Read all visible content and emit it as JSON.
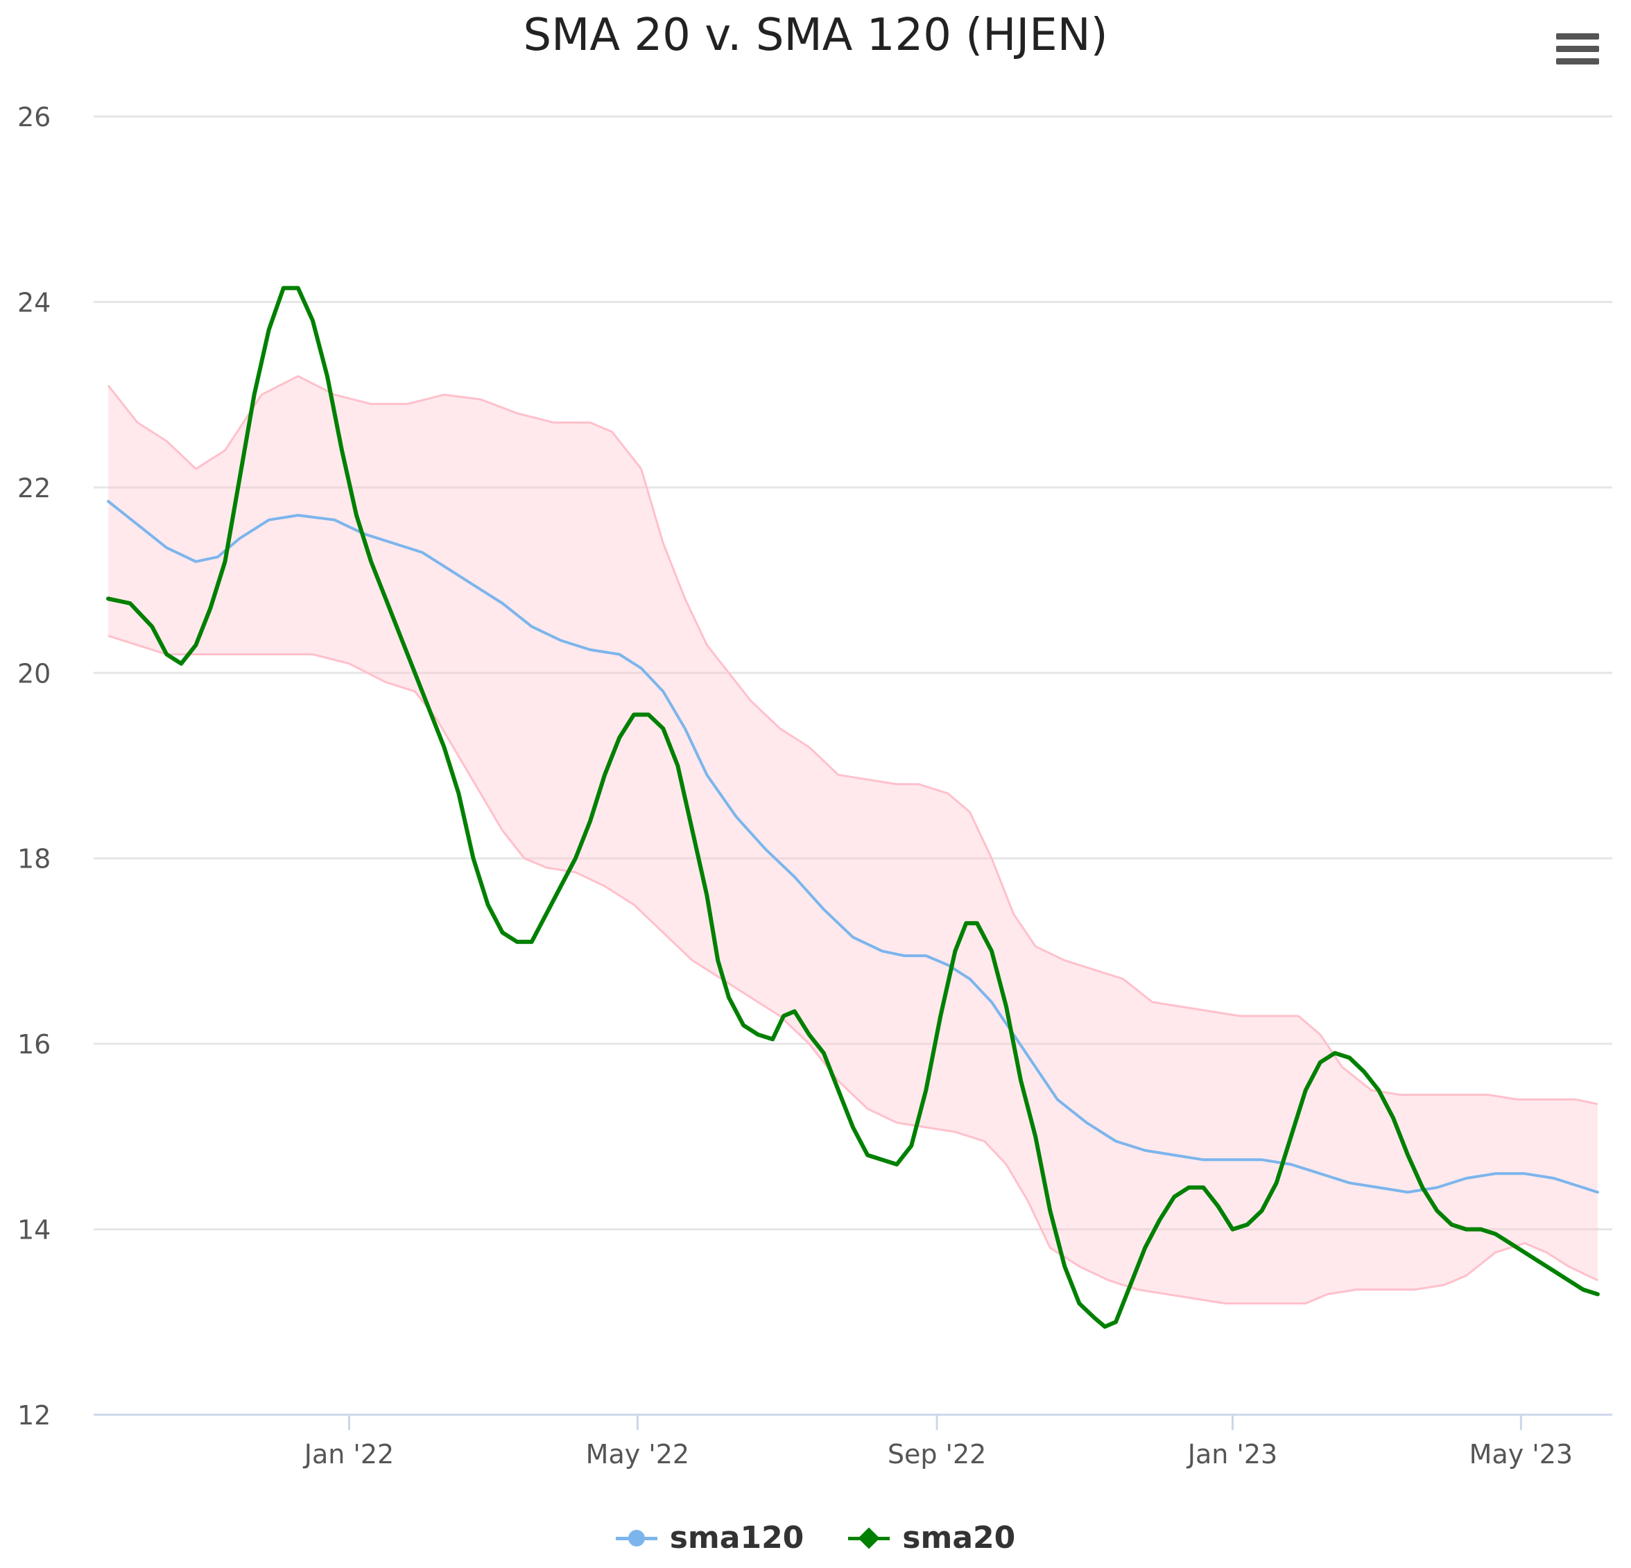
{
  "chart_data": {
    "type": "line",
    "title": "SMA 20 v. SMA 120 (HJEN)",
    "xlabel": "",
    "ylabel": "",
    "ylim": [
      12,
      26
    ],
    "yticks": [
      "12",
      "14",
      "16",
      "18",
      "20",
      "22",
      "24",
      "26"
    ],
    "xticks": [
      {
        "label": "Jan '22",
        "t": 3.5
      },
      {
        "label": "May '22",
        "t": 7.45
      },
      {
        "label": "Sep '22",
        "t": 11.55
      },
      {
        "label": "Jan '23",
        "t": 15.6
      },
      {
        "label": "May '23",
        "t": 19.55
      }
    ],
    "x_unit": "months since 2021-09-15",
    "xlim": [
      0,
      20.8
    ],
    "grid": true,
    "legend_position": "bottom-center",
    "band": {
      "name": "sma120 band",
      "color": "#ffc0cb",
      "upper": [
        [
          0.2,
          23.1
        ],
        [
          0.6,
          22.7
        ],
        [
          1.0,
          22.5
        ],
        [
          1.4,
          22.2
        ],
        [
          1.8,
          22.4
        ],
        [
          2.3,
          23.0
        ],
        [
          2.8,
          23.2
        ],
        [
          3.3,
          23.0
        ],
        [
          3.8,
          22.9
        ],
        [
          4.3,
          22.9
        ],
        [
          4.8,
          23.0
        ],
        [
          5.3,
          22.95
        ],
        [
          5.8,
          22.8
        ],
        [
          6.3,
          22.7
        ],
        [
          6.8,
          22.7
        ],
        [
          7.1,
          22.6
        ],
        [
          7.5,
          22.2
        ],
        [
          7.8,
          21.4
        ],
        [
          8.1,
          20.8
        ],
        [
          8.4,
          20.3
        ],
        [
          8.7,
          20.0
        ],
        [
          9.0,
          19.7
        ],
        [
          9.4,
          19.4
        ],
        [
          9.8,
          19.2
        ],
        [
          10.2,
          18.9
        ],
        [
          10.6,
          18.85
        ],
        [
          11.0,
          18.8
        ],
        [
          11.3,
          18.8
        ],
        [
          11.7,
          18.7
        ],
        [
          12.0,
          18.5
        ],
        [
          12.3,
          18.0
        ],
        [
          12.6,
          17.4
        ],
        [
          12.9,
          17.05
        ],
        [
          13.3,
          16.9
        ],
        [
          13.7,
          16.8
        ],
        [
          14.1,
          16.7
        ],
        [
          14.5,
          16.45
        ],
        [
          14.9,
          16.4
        ],
        [
          15.3,
          16.35
        ],
        [
          15.7,
          16.3
        ],
        [
          16.1,
          16.3
        ],
        [
          16.5,
          16.3
        ],
        [
          16.8,
          16.1
        ],
        [
          17.1,
          15.75
        ],
        [
          17.5,
          15.5
        ],
        [
          17.9,
          15.45
        ],
        [
          18.3,
          15.45
        ],
        [
          18.7,
          15.45
        ],
        [
          19.1,
          15.45
        ],
        [
          19.5,
          15.4
        ],
        [
          19.9,
          15.4
        ],
        [
          20.3,
          15.4
        ],
        [
          20.6,
          15.35
        ]
      ],
      "lower": [
        [
          0.2,
          20.4
        ],
        [
          0.6,
          20.3
        ],
        [
          1.0,
          20.2
        ],
        [
          1.5,
          20.2
        ],
        [
          2.0,
          20.2
        ],
        [
          2.5,
          20.2
        ],
        [
          3.0,
          20.2
        ],
        [
          3.5,
          20.1
        ],
        [
          4.0,
          19.9
        ],
        [
          4.4,
          19.8
        ],
        [
          4.7,
          19.5
        ],
        [
          5.0,
          19.1
        ],
        [
          5.3,
          18.7
        ],
        [
          5.6,
          18.3
        ],
        [
          5.9,
          18.0
        ],
        [
          6.2,
          17.9
        ],
        [
          6.6,
          17.85
        ],
        [
          7.0,
          17.7
        ],
        [
          7.4,
          17.5
        ],
        [
          7.8,
          17.2
        ],
        [
          8.2,
          16.9
        ],
        [
          8.6,
          16.7
        ],
        [
          9.0,
          16.5
        ],
        [
          9.4,
          16.3
        ],
        [
          9.8,
          16.0
        ],
        [
          10.2,
          15.6
        ],
        [
          10.6,
          15.3
        ],
        [
          11.0,
          15.15
        ],
        [
          11.4,
          15.1
        ],
        [
          11.8,
          15.05
        ],
        [
          12.2,
          14.95
        ],
        [
          12.5,
          14.7
        ],
        [
          12.8,
          14.3
        ],
        [
          13.1,
          13.8
        ],
        [
          13.5,
          13.6
        ],
        [
          13.9,
          13.45
        ],
        [
          14.3,
          13.35
        ],
        [
          14.7,
          13.3
        ],
        [
          15.1,
          13.25
        ],
        [
          15.5,
          13.2
        ],
        [
          15.9,
          13.2
        ],
        [
          16.3,
          13.2
        ],
        [
          16.6,
          13.2
        ],
        [
          16.9,
          13.3
        ],
        [
          17.3,
          13.35
        ],
        [
          17.7,
          13.35
        ],
        [
          18.1,
          13.35
        ],
        [
          18.5,
          13.4
        ],
        [
          18.8,
          13.5
        ],
        [
          19.2,
          13.75
        ],
        [
          19.6,
          13.85
        ],
        [
          19.9,
          13.75
        ],
        [
          20.2,
          13.6
        ],
        [
          20.6,
          13.45
        ]
      ]
    },
    "series": [
      {
        "name": "sma120",
        "color": "#7cb5ec",
        "points": [
          [
            0.2,
            21.85
          ],
          [
            0.6,
            21.6
          ],
          [
            1.0,
            21.35
          ],
          [
            1.4,
            21.2
          ],
          [
            1.7,
            21.25
          ],
          [
            2.0,
            21.45
          ],
          [
            2.4,
            21.65
          ],
          [
            2.8,
            21.7
          ],
          [
            3.3,
            21.65
          ],
          [
            3.7,
            21.5
          ],
          [
            4.1,
            21.4
          ],
          [
            4.5,
            21.3
          ],
          [
            4.8,
            21.15
          ],
          [
            5.2,
            20.95
          ],
          [
            5.6,
            20.75
          ],
          [
            6.0,
            20.5
          ],
          [
            6.4,
            20.35
          ],
          [
            6.8,
            20.25
          ],
          [
            7.2,
            20.2
          ],
          [
            7.5,
            20.05
          ],
          [
            7.8,
            19.8
          ],
          [
            8.1,
            19.4
          ],
          [
            8.4,
            18.9
          ],
          [
            8.8,
            18.45
          ],
          [
            9.2,
            18.1
          ],
          [
            9.6,
            17.8
          ],
          [
            10.0,
            17.45
          ],
          [
            10.4,
            17.15
          ],
          [
            10.8,
            17.0
          ],
          [
            11.1,
            16.95
          ],
          [
            11.4,
            16.95
          ],
          [
            11.7,
            16.85
          ],
          [
            12.0,
            16.7
          ],
          [
            12.3,
            16.45
          ],
          [
            12.6,
            16.1
          ],
          [
            12.9,
            15.75
          ],
          [
            13.2,
            15.4
          ],
          [
            13.6,
            15.15
          ],
          [
            14.0,
            14.95
          ],
          [
            14.4,
            14.85
          ],
          [
            14.8,
            14.8
          ],
          [
            15.2,
            14.75
          ],
          [
            15.6,
            14.75
          ],
          [
            16.0,
            14.75
          ],
          [
            16.4,
            14.7
          ],
          [
            16.8,
            14.6
          ],
          [
            17.2,
            14.5
          ],
          [
            17.6,
            14.45
          ],
          [
            18.0,
            14.4
          ],
          [
            18.4,
            14.45
          ],
          [
            18.8,
            14.55
          ],
          [
            19.2,
            14.6
          ],
          [
            19.6,
            14.6
          ],
          [
            20.0,
            14.55
          ],
          [
            20.4,
            14.45
          ],
          [
            20.6,
            14.4
          ]
        ]
      },
      {
        "name": "sma20",
        "color": "#008000",
        "points": [
          [
            0.2,
            20.8
          ],
          [
            0.5,
            20.75
          ],
          [
            0.8,
            20.5
          ],
          [
            1.0,
            20.2
          ],
          [
            1.2,
            20.1
          ],
          [
            1.4,
            20.3
          ],
          [
            1.6,
            20.7
          ],
          [
            1.8,
            21.2
          ],
          [
            2.0,
            22.1
          ],
          [
            2.2,
            23.0
          ],
          [
            2.4,
            23.7
          ],
          [
            2.6,
            24.15
          ],
          [
            2.8,
            24.15
          ],
          [
            3.0,
            23.8
          ],
          [
            3.2,
            23.2
          ],
          [
            3.4,
            22.4
          ],
          [
            3.6,
            21.7
          ],
          [
            3.8,
            21.2
          ],
          [
            4.0,
            20.8
          ],
          [
            4.2,
            20.4
          ],
          [
            4.4,
            20.0
          ],
          [
            4.6,
            19.6
          ],
          [
            4.8,
            19.2
          ],
          [
            5.0,
            18.7
          ],
          [
            5.2,
            18.0
          ],
          [
            5.4,
            17.5
          ],
          [
            5.6,
            17.2
          ],
          [
            5.8,
            17.1
          ],
          [
            6.0,
            17.1
          ],
          [
            6.2,
            17.4
          ],
          [
            6.4,
            17.7
          ],
          [
            6.6,
            18.0
          ],
          [
            6.8,
            18.4
          ],
          [
            7.0,
            18.9
          ],
          [
            7.2,
            19.3
          ],
          [
            7.4,
            19.55
          ],
          [
            7.6,
            19.55
          ],
          [
            7.8,
            19.4
          ],
          [
            8.0,
            19.0
          ],
          [
            8.2,
            18.3
          ],
          [
            8.4,
            17.6
          ],
          [
            8.55,
            16.9
          ],
          [
            8.7,
            16.5
          ],
          [
            8.9,
            16.2
          ],
          [
            9.1,
            16.1
          ],
          [
            9.3,
            16.05
          ],
          [
            9.45,
            16.3
          ],
          [
            9.6,
            16.35
          ],
          [
            9.8,
            16.1
          ],
          [
            10.0,
            15.9
          ],
          [
            10.2,
            15.5
          ],
          [
            10.4,
            15.1
          ],
          [
            10.6,
            14.8
          ],
          [
            10.8,
            14.75
          ],
          [
            11.0,
            14.7
          ],
          [
            11.2,
            14.9
          ],
          [
            11.4,
            15.5
          ],
          [
            11.6,
            16.3
          ],
          [
            11.8,
            17.0
          ],
          [
            11.95,
            17.3
          ],
          [
            12.1,
            17.3
          ],
          [
            12.3,
            17.0
          ],
          [
            12.5,
            16.4
          ],
          [
            12.7,
            15.6
          ],
          [
            12.9,
            15.0
          ],
          [
            13.1,
            14.2
          ],
          [
            13.3,
            13.6
          ],
          [
            13.5,
            13.2
          ],
          [
            13.7,
            13.05
          ],
          [
            13.85,
            12.95
          ],
          [
            14.0,
            13.0
          ],
          [
            14.2,
            13.4
          ],
          [
            14.4,
            13.8
          ],
          [
            14.6,
            14.1
          ],
          [
            14.8,
            14.35
          ],
          [
            15.0,
            14.45
          ],
          [
            15.2,
            14.45
          ],
          [
            15.4,
            14.25
          ],
          [
            15.6,
            14.0
          ],
          [
            15.8,
            14.05
          ],
          [
            16.0,
            14.2
          ],
          [
            16.2,
            14.5
          ],
          [
            16.4,
            15.0
          ],
          [
            16.6,
            15.5
          ],
          [
            16.8,
            15.8
          ],
          [
            17.0,
            15.9
          ],
          [
            17.2,
            15.85
          ],
          [
            17.4,
            15.7
          ],
          [
            17.6,
            15.5
          ],
          [
            17.8,
            15.2
          ],
          [
            18.0,
            14.8
          ],
          [
            18.2,
            14.45
          ],
          [
            18.4,
            14.2
          ],
          [
            18.6,
            14.05
          ],
          [
            18.8,
            14.0
          ],
          [
            19.0,
            14.0
          ],
          [
            19.2,
            13.95
          ],
          [
            19.4,
            13.85
          ],
          [
            19.6,
            13.75
          ],
          [
            19.8,
            13.65
          ],
          [
            20.0,
            13.55
          ],
          [
            20.2,
            13.45
          ],
          [
            20.4,
            13.35
          ],
          [
            20.6,
            13.3
          ]
        ]
      }
    ]
  },
  "legend": {
    "sma120_label": "sma120",
    "sma20_label": "sma20"
  }
}
